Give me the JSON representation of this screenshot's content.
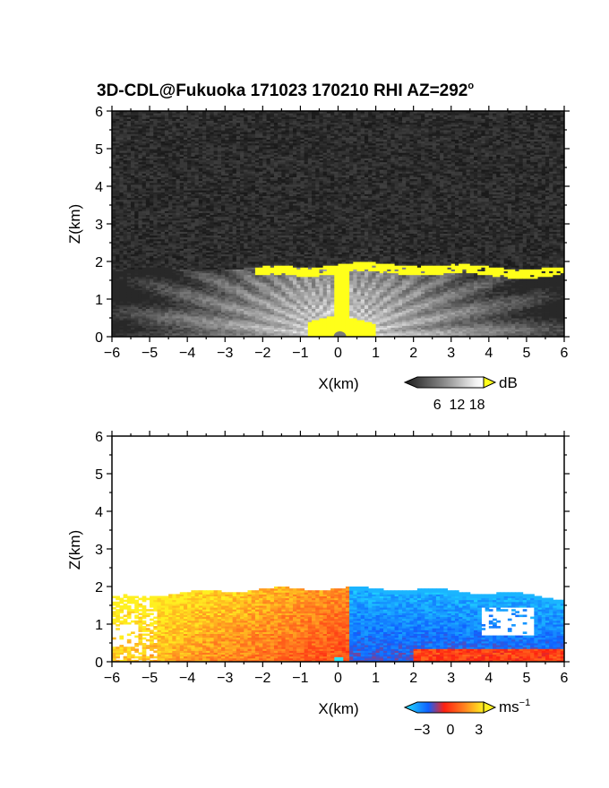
{
  "title": {
    "main": "3D-CDL@Fukuoka 171023 170210 RHI AZ=292",
    "deg": "o"
  },
  "chart_data": [
    {
      "type": "heatmap",
      "name": "intensity",
      "xlabel": "X(km)",
      "ylabel": "Z(km)",
      "xlim": [
        -6,
        6
      ],
      "ylim": [
        0,
        6
      ],
      "xticks": [
        "−6",
        "−5",
        "−4",
        "−3",
        "−2",
        "−1",
        "0",
        "1",
        "2",
        "3",
        "4",
        "5",
        "6"
      ],
      "yticks": [
        "0",
        "1",
        "2",
        "3",
        "4",
        "5",
        "6"
      ],
      "colorbar": {
        "unit": "dB",
        "ticks": [
          "6",
          "12",
          "18"
        ],
        "range": [
          0,
          20
        ],
        "palette": "grayscale-to-yellow"
      },
      "features": {
        "boundary_layer_top_km": 1.8,
        "saturated_top_band_x_km": [
          -2.2,
          6
        ],
        "saturated_top_band_z_km": [
          1.65,
          1.95
        ],
        "saturated_near_radar_x_km": [
          -0.8,
          1.0
        ],
        "saturated_near_radar_z_km": [
          0,
          0.6
        ]
      },
      "colors": {
        "background": "#262626",
        "saturated": "#ffff1a"
      }
    },
    {
      "type": "heatmap",
      "name": "velocity",
      "xlabel": "X(km)",
      "ylabel": "Z(km)",
      "xlim": [
        -6,
        6
      ],
      "ylim": [
        0,
        6
      ],
      "xticks": [
        "−6",
        "−5",
        "−4",
        "−3",
        "−2",
        "−1",
        "0",
        "1",
        "2",
        "3",
        "4",
        "5",
        "6"
      ],
      "yticks": [
        "0",
        "1",
        "2",
        "3",
        "4",
        "5",
        "6"
      ],
      "colorbar": {
        "unit": "ms",
        "unit_exp": "−1",
        "ticks": [
          "−3",
          "0",
          "3"
        ],
        "range": [
          -3.5,
          3.5
        ],
        "palette": "blue-red-yellow"
      },
      "features": {
        "echo_top_km": 1.95,
        "positive_velocity_x_km": [
          -6,
          0.3
        ],
        "negative_velocity_x_km": [
          0.3,
          6
        ]
      },
      "colors": {
        "negative": "#1a55ff",
        "zero": "#ff3020",
        "positive": "#ffe020"
      }
    }
  ]
}
